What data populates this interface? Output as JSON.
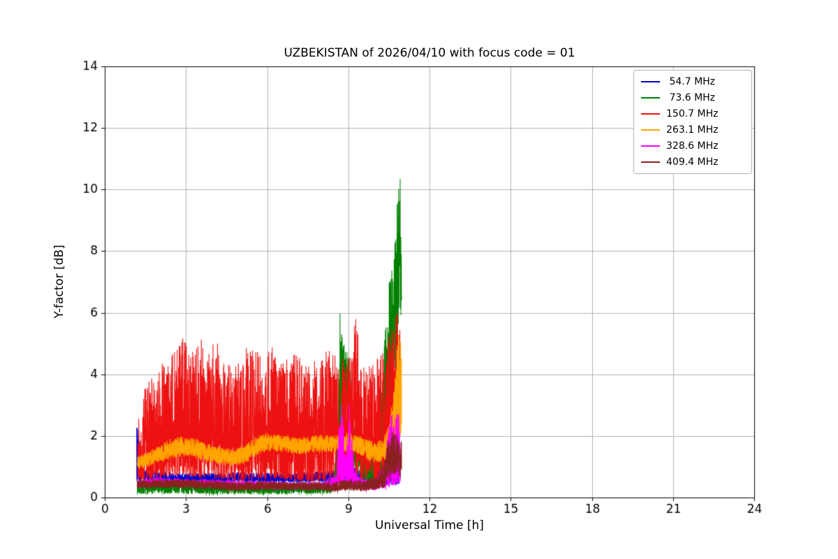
{
  "chart_data": {
    "type": "line",
    "title": "UZBEKISTAN of 2026/04/10 with focus code = 01",
    "xlabel": "Universal Time [h]",
    "ylabel": "Y-factor [dB]",
    "xlim": [
      0,
      24
    ],
    "ylim": [
      0,
      14
    ],
    "xticks": [
      0,
      3,
      6,
      9,
      12,
      15,
      18,
      21,
      24
    ],
    "yticks": [
      0,
      2,
      4,
      6,
      8,
      10,
      12,
      14
    ],
    "grid": true,
    "grid_color": "#b0b0b0",
    "axis_color": "#000000",
    "legend_position": "upper right",
    "sample_step": 0.004,
    "series": [
      {
        "label": " 54.7 MHz",
        "color": "#0000cd",
        "seed": 3,
        "bias": 1.3,
        "env": {
          "x": [
            1.18,
            1.25,
            1.32,
            1.45,
            2.0,
            3.0,
            4.0,
            5.0,
            6.0,
            7.0,
            8.0,
            8.6,
            8.9,
            9.1,
            9.5,
            10.0,
            10.4,
            10.7,
            10.88
          ],
          "lo": [
            0.5,
            0.5,
            0.45,
            0.45,
            0.45,
            0.5,
            0.5,
            0.5,
            0.5,
            0.5,
            0.5,
            0.45,
            0.4,
            0.45,
            0.45,
            0.4,
            0.4,
            0.4,
            0.45
          ],
          "hi": [
            3.2,
            2.4,
            1.4,
            0.9,
            0.85,
            0.8,
            0.8,
            0.85,
            0.8,
            0.8,
            0.85,
            0.9,
            1.6,
            1.0,
            0.9,
            0.9,
            1.1,
            1.2,
            1.0
          ]
        }
      },
      {
        "label": " 73.6 MHz",
        "color": "#008000",
        "seed": 7,
        "bias": 1.0,
        "env": {
          "x": [
            1.2,
            2.0,
            3.0,
            4.0,
            5.0,
            6.0,
            7.0,
            8.0,
            8.45,
            8.6,
            8.7,
            8.78,
            8.9,
            9.05,
            9.2,
            9.4,
            9.55,
            9.8,
            10.0,
            10.15,
            10.3,
            10.45,
            10.55,
            10.65,
            10.75,
            10.85,
            10.92,
            10.97
          ],
          "lo": [
            0.1,
            0.12,
            0.12,
            0.1,
            0.1,
            0.1,
            0.12,
            0.12,
            0.15,
            0.3,
            1.5,
            2.5,
            3.2,
            1.0,
            0.4,
            0.3,
            0.3,
            0.3,
            0.4,
            0.5,
            0.8,
            2.0,
            3.0,
            3.5,
            4.5,
            5.5,
            6.0,
            5.0
          ],
          "hi": [
            0.45,
            0.5,
            0.5,
            0.45,
            0.5,
            0.5,
            0.45,
            0.5,
            0.7,
            2.0,
            6.8,
            5.2,
            4.8,
            4.6,
            2.0,
            4.4,
            1.5,
            1.2,
            2.2,
            3.0,
            4.8,
            6.5,
            7.8,
            7.2,
            9.0,
            10.0,
            10.42,
            9.0
          ]
        }
      },
      {
        "label": "150.7 MHz",
        "color": "#ee1111",
        "seed": 13,
        "bias": 1.5,
        "env": {
          "x": [
            1.22,
            1.35,
            1.5,
            1.7,
            1.9,
            2.1,
            2.3,
            2.6,
            2.9,
            3.2,
            3.5,
            3.8,
            4.1,
            4.4,
            4.7,
            5.0,
            5.3,
            5.6,
            5.9,
            6.2,
            6.5,
            6.8,
            7.1,
            7.4,
            7.7,
            8.0,
            8.3,
            8.6,
            8.9,
            9.1,
            9.3,
            9.45,
            9.6,
            9.8,
            10.0,
            10.2,
            10.4,
            10.6,
            10.75,
            10.85,
            10.92
          ],
          "lo": [
            0.6,
            0.55,
            0.5,
            0.55,
            0.6,
            0.6,
            0.65,
            0.7,
            0.7,
            0.65,
            0.6,
            0.65,
            0.6,
            0.6,
            0.55,
            0.5,
            0.55,
            0.6,
            0.6,
            0.6,
            0.6,
            0.55,
            0.5,
            0.55,
            0.5,
            0.55,
            0.6,
            0.5,
            0.5,
            0.5,
            0.5,
            0.5,
            0.55,
            0.6,
            0.5,
            0.6,
            0.8,
            1.0,
            1.3,
            1.8,
            2.0
          ],
          "hi": [
            3.3,
            2.3,
            3.9,
            4.0,
            3.6,
            4.6,
            4.2,
            5.0,
            5.4,
            4.7,
            5.3,
            4.6,
            5.2,
            4.4,
            4.3,
            4.4,
            5.0,
            4.8,
            4.6,
            4.9,
            4.4,
            4.6,
            4.8,
            4.3,
            4.4,
            4.6,
            4.9,
            4.5,
            4.7,
            4.5,
            6.2,
            4.6,
            4.3,
            4.3,
            4.6,
            4.7,
            5.0,
            5.6,
            6.2,
            6.0,
            5.5
          ]
        }
      },
      {
        "label": "263.1 MHz",
        "color": "#ffa500",
        "seed": 21,
        "bias": 1.0,
        "env": {
          "x": [
            1.2,
            1.6,
            2.0,
            2.4,
            2.8,
            3.2,
            3.6,
            4.0,
            4.4,
            4.8,
            5.2,
            5.6,
            6.0,
            6.4,
            6.8,
            7.2,
            7.6,
            8.0,
            8.4,
            8.8,
            9.1,
            9.4,
            9.7,
            10.0,
            10.3,
            10.55,
            10.7,
            10.82,
            10.9,
            10.97
          ],
          "lo": [
            0.9,
            1.0,
            1.1,
            1.25,
            1.3,
            1.3,
            1.2,
            1.1,
            1.05,
            1.0,
            1.1,
            1.35,
            1.5,
            1.5,
            1.45,
            1.4,
            1.45,
            1.5,
            1.45,
            1.5,
            1.5,
            1.4,
            1.2,
            1.1,
            1.2,
            1.3,
            1.5,
            1.8,
            2.0,
            2.0
          ],
          "hi": [
            1.35,
            1.5,
            1.7,
            1.9,
            2.0,
            1.95,
            1.85,
            1.7,
            1.6,
            1.55,
            1.7,
            2.0,
            2.1,
            2.05,
            2.0,
            1.95,
            2.0,
            2.05,
            2.0,
            2.1,
            2.1,
            2.0,
            1.9,
            1.8,
            1.9,
            2.6,
            3.8,
            5.0,
            5.6,
            4.8
          ]
        }
      },
      {
        "label": "328.6 MHz",
        "color": "#ff00ff",
        "seed": 29,
        "bias": 1.6,
        "env": {
          "x": [
            1.2,
            2.0,
            3.0,
            4.0,
            5.0,
            6.0,
            7.0,
            8.0,
            8.55,
            8.75,
            8.9,
            9.05,
            9.2,
            9.5,
            10.0,
            10.35,
            10.55,
            10.7,
            10.85,
            10.93
          ],
          "lo": [
            0.35,
            0.4,
            0.4,
            0.35,
            0.3,
            0.3,
            0.3,
            0.3,
            0.3,
            0.3,
            0.3,
            0.3,
            0.28,
            0.25,
            0.25,
            0.3,
            0.35,
            0.4,
            0.45,
            0.5
          ],
          "hi": [
            0.6,
            0.65,
            0.6,
            0.6,
            0.55,
            0.55,
            0.5,
            0.5,
            0.8,
            3.4,
            1.2,
            3.3,
            1.0,
            0.6,
            0.6,
            1.2,
            2.9,
            2.5,
            2.9,
            2.0
          ]
        }
      },
      {
        "label": "409.4 MHz",
        "color": "#8b2020",
        "seed": 37,
        "bias": 1.2,
        "env": {
          "x": [
            1.2,
            2.0,
            3.0,
            4.0,
            5.0,
            6.0,
            7.0,
            8.0,
            8.5,
            9.0,
            9.5,
            10.0,
            10.3,
            10.5,
            10.65,
            10.8,
            10.9,
            10.97
          ],
          "lo": [
            0.3,
            0.32,
            0.3,
            0.28,
            0.22,
            0.25,
            0.25,
            0.25,
            0.2,
            0.25,
            0.2,
            0.25,
            0.3,
            0.5,
            0.7,
            0.8,
            0.7,
            0.5
          ],
          "hi": [
            0.55,
            0.6,
            0.6,
            0.55,
            0.5,
            0.55,
            0.5,
            0.5,
            0.5,
            0.6,
            0.55,
            0.7,
            1.2,
            1.9,
            2.2,
            2.1,
            2.0,
            1.8
          ]
        }
      }
    ]
  }
}
